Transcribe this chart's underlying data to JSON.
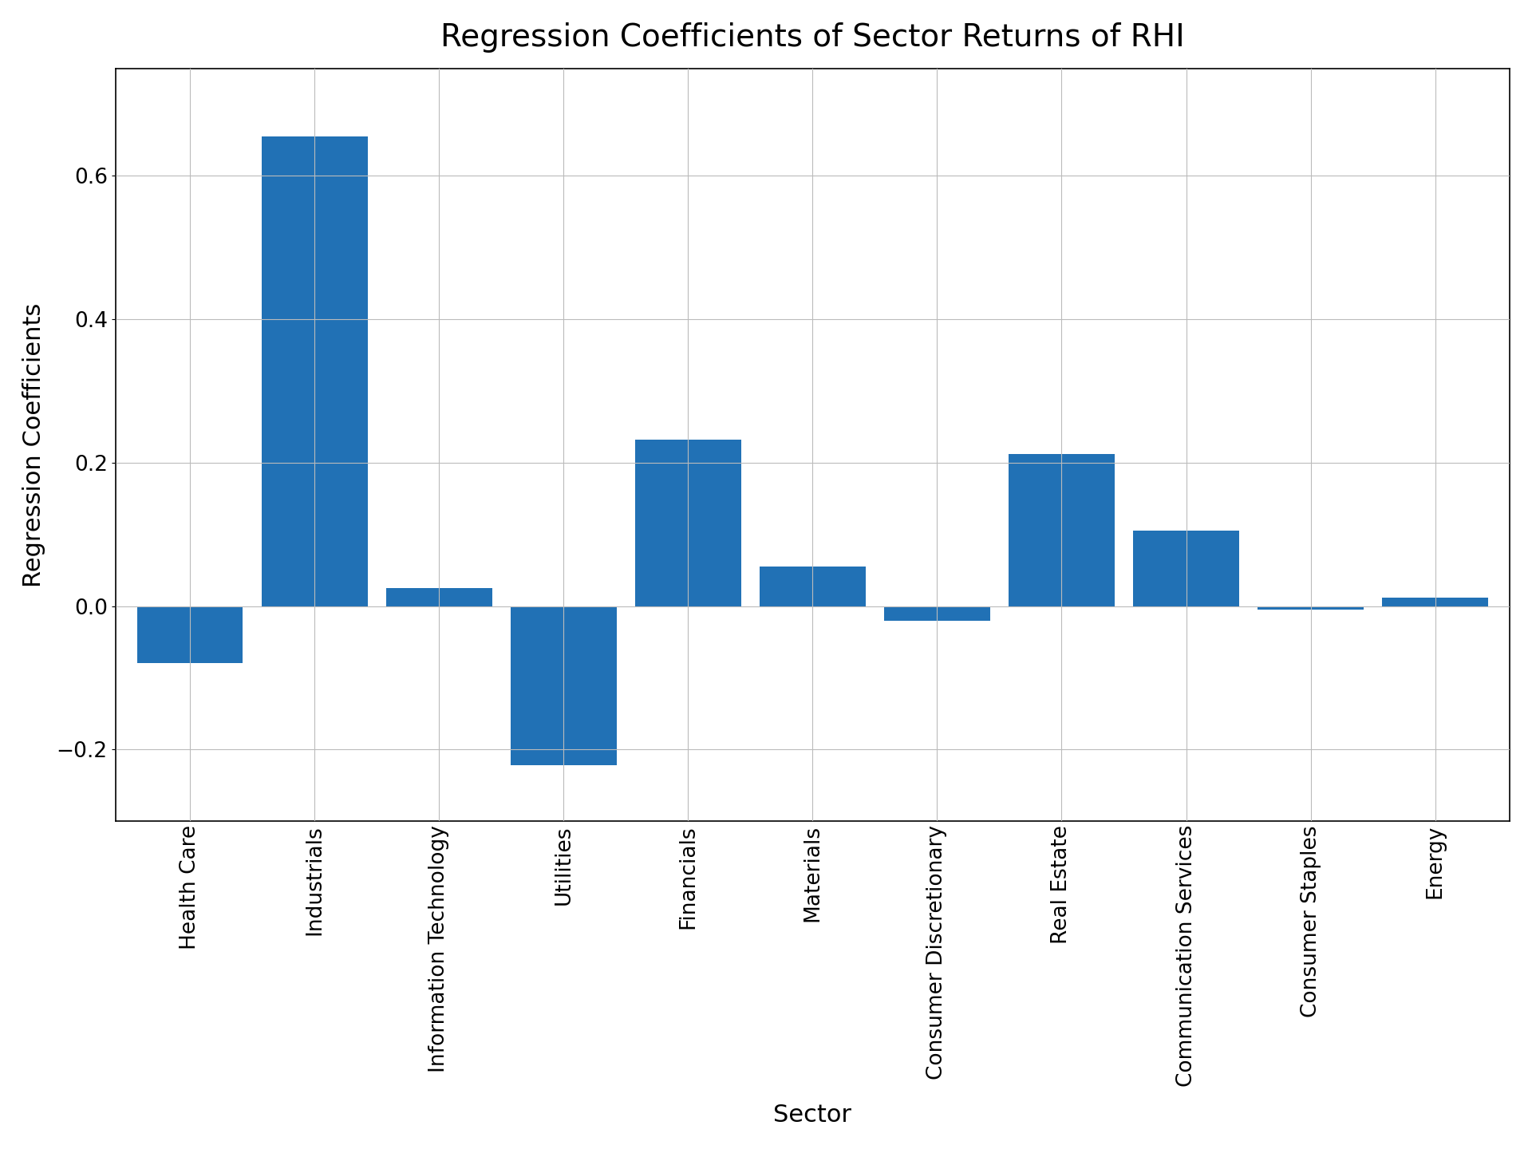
{
  "title": "Regression Coefficients of Sector Returns of RHI",
  "xlabel": "Sector",
  "ylabel": "Regression Coefficients",
  "categories": [
    "Health Care",
    "Industrials",
    "Information Technology",
    "Utilities",
    "Financials",
    "Materials",
    "Consumer Discretionary",
    "Real Estate",
    "Communication Services",
    "Consumer Staples",
    "Energy"
  ],
  "values": [
    -0.08,
    0.655,
    0.025,
    -0.222,
    0.232,
    0.055,
    -0.02,
    0.212,
    0.105,
    -0.005,
    0.012
  ],
  "bar_color": "#2171b5",
  "bar_edge_color": "#2171b5",
  "ylim": [
    -0.3,
    0.75
  ],
  "yticks": [
    -0.2,
    0.0,
    0.2,
    0.4,
    0.6
  ],
  "grid": true,
  "grid_color": "#bbbbbb",
  "title_fontsize": 28,
  "label_fontsize": 22,
  "tick_fontsize": 19,
  "figsize": [
    19.2,
    14.4
  ],
  "dpi": 100,
  "bar_width": 0.85
}
